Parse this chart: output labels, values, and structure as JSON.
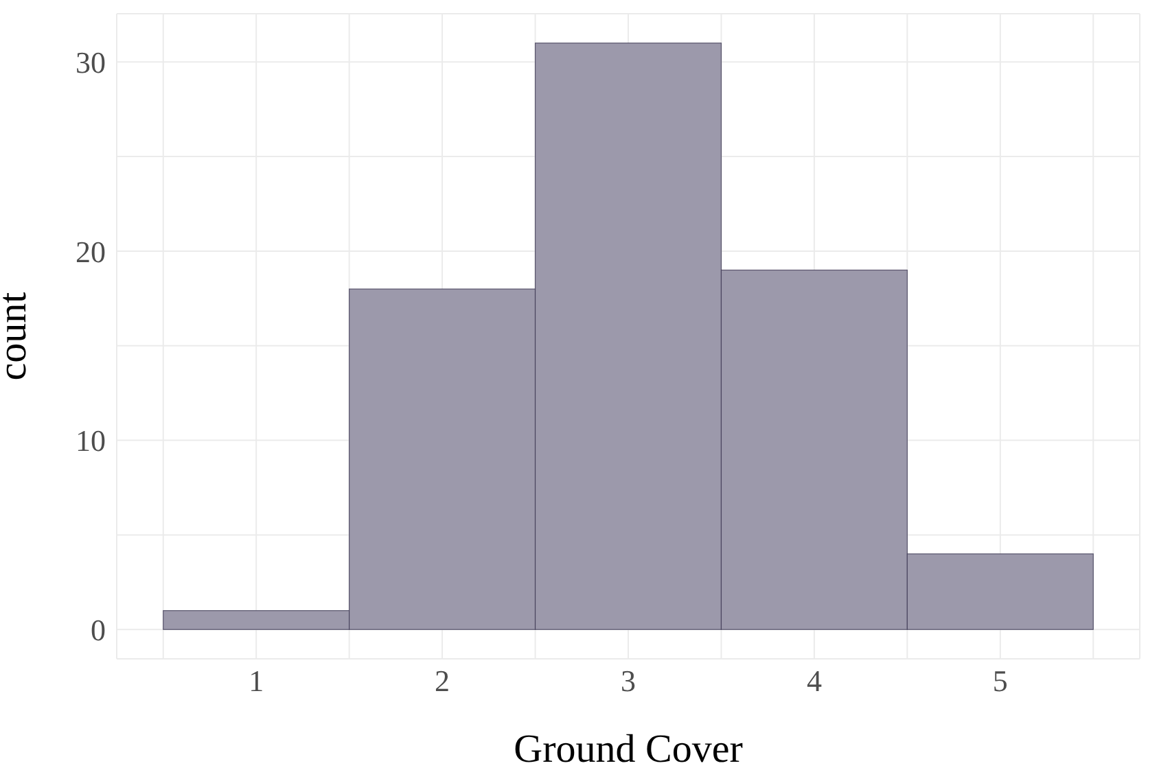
{
  "chart_data": {
    "type": "histogram",
    "xlabel": "Ground Cover",
    "ylabel": "count",
    "bins": [
      0.5,
      1.5,
      2.5,
      3.5,
      4.5,
      5.5
    ],
    "values": [
      1,
      18,
      31,
      19,
      4
    ],
    "color": "#9c99ab",
    "xlim": [
      0.25,
      5.75
    ],
    "ylim": [
      -1.55,
      32.55
    ],
    "xticks": [
      {
        "value": 0.5,
        "label": null
      },
      1,
      {
        "value": 1.5,
        "label": null
      },
      2,
      {
        "value": 2.5,
        "label": null
      },
      3,
      {
        "value": 3.5,
        "label": null
      },
      4,
      {
        "value": 4.5,
        "label": null
      },
      5,
      {
        "value": 5.5,
        "label": null
      }
    ],
    "yticks": [
      0,
      {
        "value": 5,
        "label": null
      },
      10,
      {
        "value": 15,
        "label": null
      },
      20,
      {
        "value": 25,
        "label": null
      },
      30
    ],
    "grid": true
  }
}
